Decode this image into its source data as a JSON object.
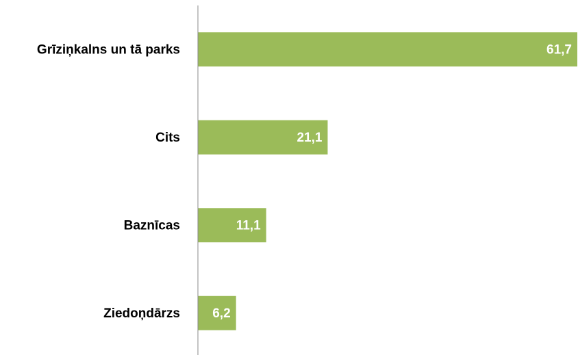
{
  "chart_data": {
    "type": "bar",
    "orientation": "horizontal",
    "categories": [
      "Grīziņkalns un tā parks",
      "Cits",
      "Baznīcas",
      "Ziedoņdārzs"
    ],
    "values": [
      61.7,
      21.1,
      11.1,
      6.2
    ],
    "value_labels": [
      "61,7",
      "21,1",
      "11,1",
      "6,2"
    ],
    "color": "#9bbb59"
  }
}
